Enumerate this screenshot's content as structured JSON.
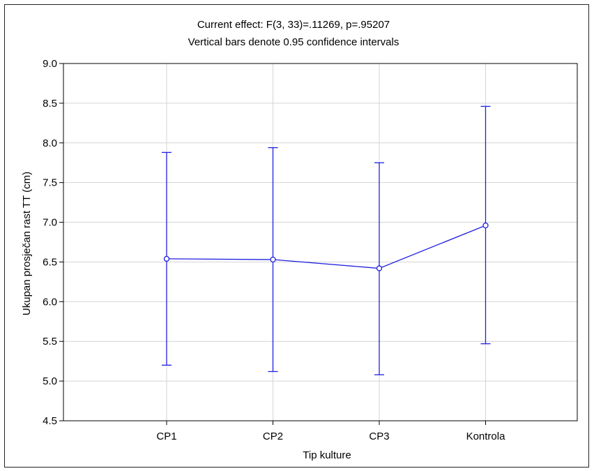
{
  "chart_data": {
    "type": "line",
    "title": "Current effect: F(3, 33)=.11269, p=.95207",
    "subtitle": "Vertical bars denote 0.95 confidence intervals",
    "xlabel": "Tip kulture",
    "ylabel": "Ukupan prosječan rast TT (cm)",
    "categories": [
      "CP1",
      "CP2",
      "CP3",
      "Kontrola"
    ],
    "series": [
      {
        "values": [
          6.54,
          6.53,
          6.42,
          6.96
        ],
        "ci_lower": [
          5.2,
          5.12,
          5.08,
          5.47
        ],
        "ci_upper": [
          7.88,
          7.94,
          7.75,
          8.46
        ]
      }
    ],
    "ylim": [
      4.5,
      9.0
    ],
    "yticks": [
      "4.5",
      "5.0",
      "5.5",
      "6.0",
      "6.5",
      "7.0",
      "7.5",
      "8.0",
      "8.5",
      "9.0"
    ],
    "grid": true,
    "colors": {
      "series": "#1f1fe0",
      "grid": "#d4d4d4",
      "axis": "#000000"
    }
  }
}
